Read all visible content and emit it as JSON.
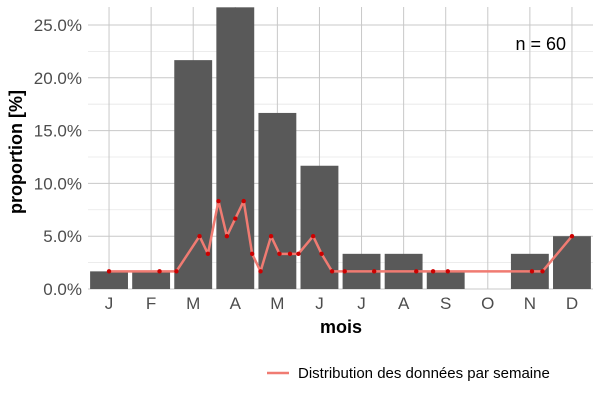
{
  "chart_data": {
    "type": "bar",
    "categories": [
      "J",
      "F",
      "M",
      "A",
      "M",
      "J",
      "J",
      "A",
      "S",
      "O",
      "N",
      "D"
    ],
    "values": [
      1.67,
      1.67,
      21.67,
      26.67,
      16.67,
      11.67,
      3.33,
      3.33,
      1.67,
      0,
      3.33,
      5.0
    ],
    "ylim": [
      0,
      26.7
    ],
    "yticks": [
      0,
      5,
      10,
      15,
      20,
      25
    ],
    "ytick_labels": [
      "0.0%",
      "5.0%",
      "10.0%",
      "15.0%",
      "20.0%",
      "25.0%"
    ],
    "xlabel": "mois",
    "ylabel": "proportion [%]",
    "grid": true,
    "bar_color": "#595959",
    "annotation": "n = 60",
    "weekly_series": {
      "name": "Distribution des données par semaine",
      "line_color": "#f07b72",
      "point_color": "#cc0000",
      "points": [
        {
          "x": 0.0,
          "y": 1.67
        },
        {
          "x": 1.2,
          "y": 1.67
        },
        {
          "x": 1.6,
          "y": 1.67
        },
        {
          "x": 2.15,
          "y": 5.0
        },
        {
          "x": 2.35,
          "y": 3.33
        },
        {
          "x": 2.6,
          "y": 8.33
        },
        {
          "x": 2.8,
          "y": 5.0
        },
        {
          "x": 3.0,
          "y": 6.67
        },
        {
          "x": 3.2,
          "y": 8.33
        },
        {
          "x": 3.4,
          "y": 3.33
        },
        {
          "x": 3.6,
          "y": 1.67
        },
        {
          "x": 3.85,
          "y": 5.0
        },
        {
          "x": 4.05,
          "y": 3.33
        },
        {
          "x": 4.3,
          "y": 3.33
        },
        {
          "x": 4.5,
          "y": 3.33
        },
        {
          "x": 4.85,
          "y": 5.0
        },
        {
          "x": 5.05,
          "y": 3.33
        },
        {
          "x": 5.3,
          "y": 1.67
        },
        {
          "x": 5.6,
          "y": 1.67
        },
        {
          "x": 6.3,
          "y": 1.67
        },
        {
          "x": 7.3,
          "y": 1.67
        },
        {
          "x": 7.7,
          "y": 1.67
        },
        {
          "x": 8.05,
          "y": 1.67
        },
        {
          "x": 10.05,
          "y": 1.67
        },
        {
          "x": 10.3,
          "y": 1.67
        },
        {
          "x": 11.0,
          "y": 5.0
        }
      ]
    },
    "legend": {
      "position": "bottom-right",
      "entries": [
        {
          "label": "Distribution des données par semaine",
          "color": "#f07b72"
        }
      ]
    }
  }
}
